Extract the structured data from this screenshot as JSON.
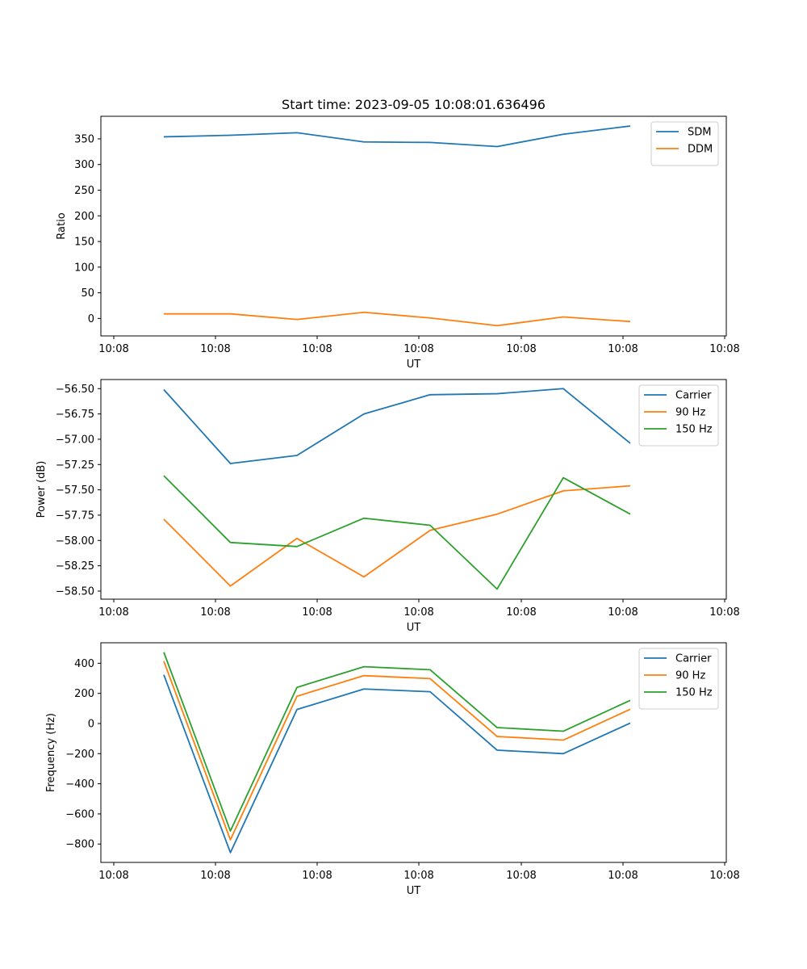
{
  "chart_data": [
    {
      "type": "line",
      "title": "Start time: 2023-09-05 10:08:01.636496",
      "xlabel": "UT",
      "ylabel": "Ratio",
      "xticks": [
        "10:08",
        "10:08",
        "10:08",
        "10:08",
        "10:08",
        "10:08",
        "10:08"
      ],
      "yticks": [
        "0",
        "50",
        "100",
        "150",
        "200",
        "250",
        "300",
        "350"
      ],
      "ylim": [
        -34,
        394
      ],
      "grid": false,
      "legend_position": "upper right",
      "series": [
        {
          "name": "SDM",
          "color": "#1f77b4",
          "values": [
            354,
            357,
            362,
            344,
            343,
            335,
            359,
            375
          ]
        },
        {
          "name": "DDM",
          "color": "#ff7f0e",
          "values": [
            9,
            9,
            -2,
            12,
            1,
            -14,
            3,
            -6
          ]
        }
      ]
    },
    {
      "type": "line",
      "title": "",
      "xlabel": "UT",
      "ylabel": "Power (dB)",
      "xticks": [
        "10:08",
        "10:08",
        "10:08",
        "10:08",
        "10:08",
        "10:08",
        "10:08"
      ],
      "yticks": [
        "−58.50",
        "−58.25",
        "−58.00",
        "−57.75",
        "−57.50",
        "−57.25",
        "−57.00",
        "−56.75",
        "−56.50"
      ],
      "ylim": [
        -58.58,
        -56.41
      ],
      "grid": false,
      "legend_position": "upper right",
      "series": [
        {
          "name": "Carrier",
          "color": "#1f77b4",
          "values": [
            -56.51,
            -57.24,
            -57.16,
            -56.75,
            -56.56,
            -56.55,
            -56.5,
            -57.04
          ]
        },
        {
          "name": "90 Hz",
          "color": "#ff7f0e",
          "values": [
            -57.79,
            -58.45,
            -57.98,
            -58.36,
            -57.9,
            -57.74,
            -57.51,
            -57.46
          ]
        },
        {
          "name": "150 Hz",
          "color": "#2ca02c",
          "values": [
            -57.36,
            -58.02,
            -58.06,
            -57.78,
            -57.85,
            -58.48,
            -57.38,
            -57.74
          ]
        }
      ]
    },
    {
      "type": "line",
      "title": "",
      "xlabel": "UT",
      "ylabel": "Frequency (Hz)",
      "xticks": [
        "10:08",
        "10:08",
        "10:08",
        "10:08",
        "10:08",
        "10:08",
        "10:08"
      ],
      "yticks": [
        "−800",
        "−600",
        "−400",
        "−200",
        "0",
        "200",
        "400"
      ],
      "ylim": [
        -922,
        536
      ],
      "grid": false,
      "legend_position": "upper right",
      "series": [
        {
          "name": "Carrier",
          "color": "#1f77b4",
          "values": [
            323,
            -857,
            93,
            229,
            211,
            -177,
            -200,
            3
          ]
        },
        {
          "name": "90 Hz",
          "color": "#ff7f0e",
          "values": [
            414,
            -772,
            181,
            318,
            298,
            -86,
            -110,
            95
          ]
        },
        {
          "name": "150 Hz",
          "color": "#2ca02c",
          "values": [
            473,
            -713,
            240,
            377,
            357,
            -27,
            -51,
            154
          ]
        }
      ]
    }
  ]
}
